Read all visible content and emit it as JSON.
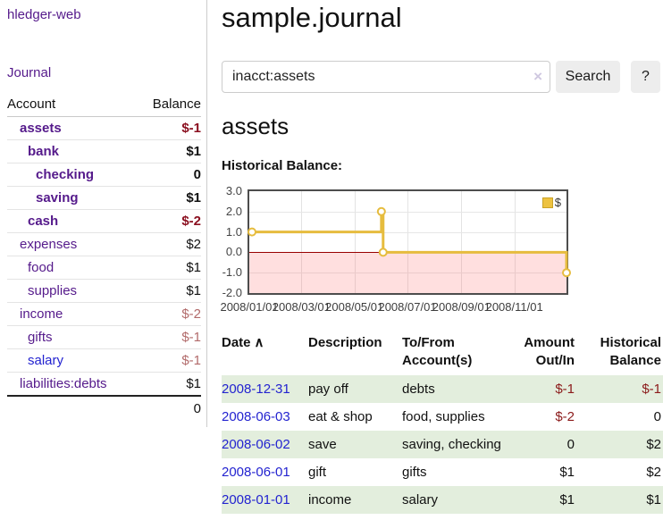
{
  "app": {
    "title": "hledger-web",
    "nav_journal": "Journal"
  },
  "sidebar": {
    "columns": [
      "Account",
      "Balance"
    ],
    "accounts": [
      {
        "name": "assets",
        "depth": 1,
        "bold": true,
        "balance": "$-1"
      },
      {
        "name": "bank",
        "depth": 2,
        "bold": true,
        "balance": "$1"
      },
      {
        "name": "checking",
        "depth": 3,
        "bold": true,
        "balance": "0"
      },
      {
        "name": "saving",
        "depth": 3,
        "bold": true,
        "balance": "$1"
      },
      {
        "name": "cash",
        "depth": 2,
        "bold": true,
        "balance": "$-2"
      },
      {
        "name": "expenses",
        "depth": 1,
        "bold": false,
        "balance": "$2"
      },
      {
        "name": "food",
        "depth": 2,
        "bold": false,
        "balance": "$1"
      },
      {
        "name": "supplies",
        "depth": 2,
        "bold": false,
        "balance": "$1"
      },
      {
        "name": "income",
        "depth": 1,
        "bold": false,
        "balance": "$-2"
      },
      {
        "name": "gifts",
        "depth": 2,
        "bold": false,
        "balance": "$-1"
      },
      {
        "name": "salary",
        "depth": 2,
        "bold": false,
        "balance": "$-1",
        "visited": true
      },
      {
        "name": "liabilities:debts",
        "depth": 1,
        "bold": false,
        "balance": "$1"
      }
    ],
    "total": "0"
  },
  "header": {
    "title": "sample.journal"
  },
  "search": {
    "value": "inacct:assets",
    "clear_icon": "×",
    "button": "Search",
    "help_button": "?"
  },
  "account_page": {
    "heading": "assets",
    "chart_title": "Historical Balance:"
  },
  "chart_data": {
    "type": "line",
    "title": "Historical Balance:",
    "step": true,
    "series": [
      {
        "name": "$",
        "color": "#e6bc3e",
        "points": [
          {
            "x": "2008-01-01",
            "y": 1
          },
          {
            "x": "2008-06-01",
            "y": 2
          },
          {
            "x": "2008-06-03",
            "y": 0
          },
          {
            "x": "2008-12-31",
            "y": -1
          }
        ]
      }
    ],
    "xrange": [
      "2008-01-01",
      "2008-12-31"
    ],
    "ylim": [
      -2.0,
      3.0
    ],
    "yticks": [
      3.0,
      2.0,
      1.0,
      0.0,
      -1.0,
      -2.0
    ],
    "xticks": [
      "2008/01/01",
      "2008/03/01",
      "2008/05/01",
      "2008/07/01",
      "2008/09/01",
      "2008/11/01"
    ],
    "grid": true,
    "legend_position": "top-right",
    "negative_region": true,
    "zero_line_color": "#990000"
  },
  "register": {
    "columns": [
      "Date",
      "Description",
      "To/From Account(s)",
      "Amount Out/In",
      "Historical Balance"
    ],
    "sort_icon": "∧",
    "rows": [
      {
        "date": "2008-12-31",
        "description": "pay off",
        "accounts": "debts",
        "amount": "$-1",
        "balance": "$-1"
      },
      {
        "date": "2008-06-03",
        "description": "eat & shop",
        "accounts": "food, supplies",
        "amount": "$-2",
        "balance": "0"
      },
      {
        "date": "2008-06-02",
        "description": "save",
        "accounts": "saving, checking",
        "amount": "0",
        "balance": "$2"
      },
      {
        "date": "2008-06-01",
        "description": "gift",
        "accounts": "gifts",
        "amount": "$1",
        "balance": "$2"
      },
      {
        "date": "2008-01-01",
        "description": "income",
        "accounts": "salary",
        "amount": "$1",
        "balance": "$1"
      }
    ]
  }
}
